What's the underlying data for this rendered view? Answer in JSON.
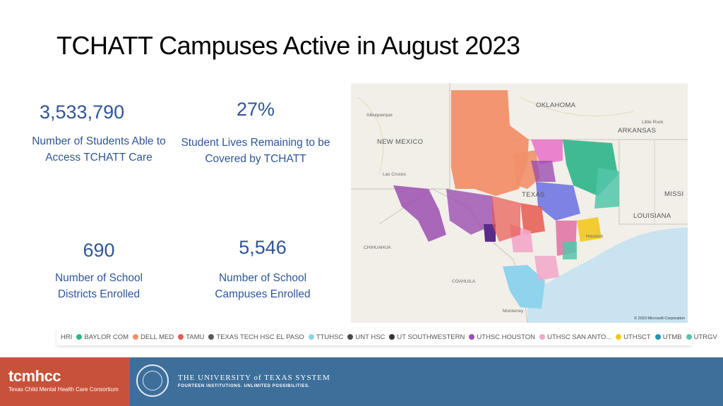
{
  "title": "TCHATT Campuses Active in August 2023",
  "stats": [
    {
      "value": "3,533,790",
      "label": "Number of Students Able to Access TCHATT Care"
    },
    {
      "value": "27%",
      "label": "Student Lives Remaining to be Covered by TCHATT"
    },
    {
      "value": "690",
      "label": "Number of School Districts Enrolled"
    },
    {
      "value": "5,546",
      "label": "Number of School Campuses Enrolled"
    }
  ],
  "map": {
    "labels": {
      "oklahoma": "OKLAHOMA",
      "arkansas": "ARKANSAS",
      "new_mexico": "NEW MEXICO",
      "texas": "TEXAS",
      "louisiana": "LOUISIANA",
      "mississippi": "MISSI",
      "chihuahua": "CHIHUAHUA",
      "coahuila": "COAHUILA",
      "albuquerque": "Albuquerque",
      "little_rock": "Little Rock",
      "las_cruces": "Las Cruces",
      "monterrey": "Monterrey",
      "houston": "Houston"
    },
    "copyright": "© 2023 Microsoft Corporation"
  },
  "legend": [
    {
      "name": "HRI",
      "color": ""
    },
    {
      "name": "BAYLOR COM",
      "color": "#2bb58a"
    },
    {
      "name": "DELL MED",
      "color": "#f0906a"
    },
    {
      "name": "TAMU",
      "color": "#e8594f"
    },
    {
      "name": "TEXAS TECH HSC EL PASO",
      "color": "#5a5a5a"
    },
    {
      "name": "TTUHSC",
      "color": "#8fd3ec"
    },
    {
      "name": "UNT HSC",
      "color": "#4a4a4a"
    },
    {
      "name": "UT SOUTHWESTERN",
      "color": "#333333"
    },
    {
      "name": "UTHSC HOUSTON",
      "color": "#9b4fb0"
    },
    {
      "name": "UTHSC SAN ANTO...",
      "color": "#f2a6c8"
    },
    {
      "name": "UTHSCT",
      "color": "#f2c81e"
    },
    {
      "name": "UTMB",
      "color": "#1f97b3"
    },
    {
      "name": "UTRGV",
      "color": "#52c7a9"
    }
  ],
  "footer": {
    "brand": "tcmhcc",
    "brand_sub": "Texas Child Mental Health Care Consortium",
    "ut_name": "THE UNIVERSITY of TEXAS SYSTEM",
    "ut_tagline": "FOURTEEN INSTITUTIONS. UNLIMITED POSSIBILITIES."
  },
  "colors": {
    "stat_text": "#2f5597",
    "footer_blue": "#3e6f9b",
    "footer_orange": "#c8513a"
  }
}
